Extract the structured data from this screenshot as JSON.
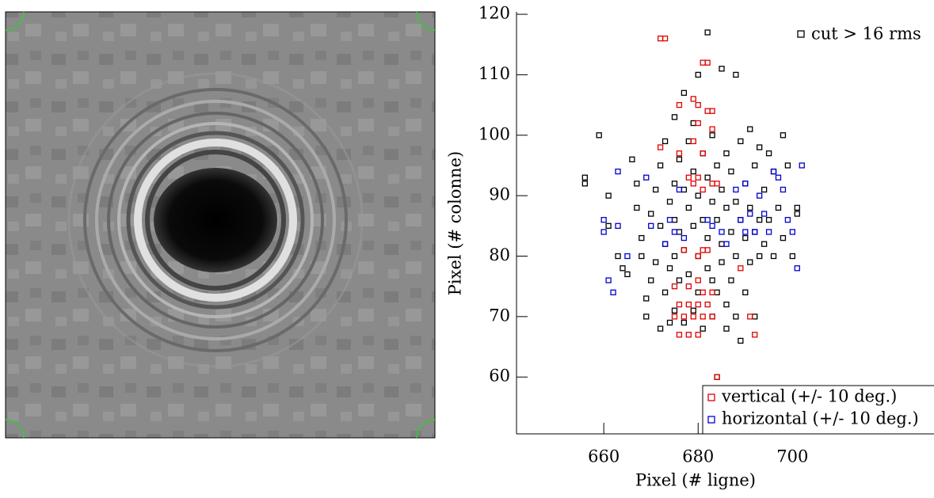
{
  "chart_data": {
    "type": "scatter",
    "xlabel": "Pixel (# ligne)",
    "ylabel": "Pixel (# colonne)",
    "xlim": [
      641.5,
      730
    ],
    "ylim": [
      50.6,
      120.4
    ],
    "xticks": [
      660,
      680,
      700
    ],
    "yticks": [
      60,
      70,
      80,
      90,
      100,
      110,
      120
    ],
    "series": [
      {
        "name": "cut  > 16 rms",
        "color": "#000000",
        "x": [
          656,
          656,
          659,
          661,
          661,
          663,
          664,
          665,
          666,
          667,
          667,
          668,
          668,
          669,
          669,
          670,
          670,
          671,
          671,
          672,
          672,
          672,
          673,
          673,
          673,
          674,
          674,
          674,
          675,
          675,
          675,
          675,
          675,
          676,
          676,
          676,
          677,
          677,
          677,
          677,
          678,
          678,
          678,
          679,
          679,
          679,
          679,
          680,
          680,
          680,
          680,
          681,
          681,
          681,
          682,
          682,
          682,
          682,
          683,
          683,
          683,
          683,
          684,
          684,
          684,
          684,
          685,
          685,
          685,
          685,
          686,
          686,
          686,
          686,
          687,
          687,
          687,
          688,
          688,
          688,
          688,
          689,
          689,
          689,
          690,
          690,
          690,
          691,
          691,
          691,
          692,
          692,
          692,
          693,
          693,
          693,
          694,
          694,
          695,
          695,
          696,
          696,
          697,
          698,
          698,
          699,
          700,
          701,
          701
        ],
        "y": [
          93,
          92,
          100,
          90,
          85,
          80,
          78,
          77,
          96,
          92,
          88,
          83,
          80,
          73,
          70,
          76,
          87,
          91,
          79,
          95,
          85,
          68,
          99,
          82,
          74,
          89,
          78,
          69,
          103,
          92,
          86,
          80,
          71,
          96,
          84,
          76,
          107,
          91,
          81,
          69,
          99,
          88,
          77,
          102,
          94,
          85,
          71,
          110,
          90,
          80,
          74,
          97,
          86,
          68,
          117,
          93,
          83,
          78,
          100,
          89,
          76,
          70,
          95,
          86,
          74,
          60,
          111,
          91,
          82,
          79,
          97,
          88,
          72,
          68,
          94,
          84,
          76,
          110,
          89,
          80,
          70,
          99,
          86,
          66,
          92,
          83,
          74,
          101,
          88,
          79,
          95,
          84,
          70,
          98,
          86,
          80,
          91,
          82,
          97,
          86,
          94,
          80,
          88,
          100,
          83,
          95,
          80,
          88,
          87
        ]
      },
      {
        "name": "vertical (+/- 10 deg.)",
        "color": "#e00000",
        "x": [
          672,
          673,
          681,
          682,
          676,
          679,
          680,
          682,
          683,
          680,
          683,
          672,
          676,
          679,
          681,
          678,
          680,
          679,
          681,
          683,
          684,
          677,
          680,
          681,
          682,
          675,
          678,
          680,
          681,
          683,
          676,
          678,
          680,
          682,
          675,
          677,
          679,
          681,
          683,
          676,
          678,
          680,
          684,
          689,
          691,
          692
        ],
        "y": [
          116,
          116,
          112,
          112,
          105,
          106,
          105,
          104,
          104,
          102,
          101,
          98,
          97,
          99,
          97,
          93,
          93,
          92,
          91,
          92,
          92,
          81,
          80,
          81,
          81,
          75,
          75,
          76,
          74,
          74,
          72,
          72,
          72,
          72,
          70,
          70,
          70,
          70,
          70,
          67,
          67,
          67,
          60,
          78,
          70,
          67
        ]
      },
      {
        "name": "horizontal (+/- 10 deg.)",
        "color": "#0000d0",
        "x": [
          660,
          660,
          661,
          662,
          663,
          663,
          665,
          669,
          670,
          673,
          674,
          675,
          676,
          677,
          682,
          683,
          685,
          686,
          688,
          689,
          690,
          690,
          691,
          692,
          693,
          694,
          695,
          696,
          697,
          698,
          699,
          700,
          701,
          702
        ],
        "y": [
          86,
          84,
          76,
          74,
          94,
          85,
          80,
          93,
          85,
          82,
          86,
          84,
          91,
          83,
          86,
          85,
          84,
          82,
          91,
          86,
          84,
          92,
          87,
          84,
          90,
          87,
          84,
          94,
          93,
          91,
          86,
          84,
          78,
          95
        ]
      }
    ]
  }
}
